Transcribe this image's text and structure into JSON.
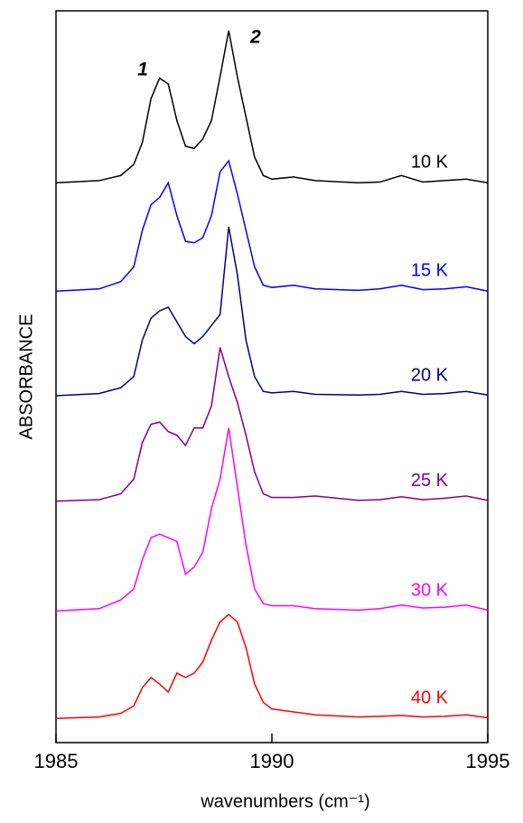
{
  "chart_data": {
    "type": "line",
    "x_label": "wavenumbers (cm⁻¹)",
    "y_label": "ABSORBANCE",
    "annotations": [
      "1",
      "2"
    ],
    "xlim": [
      1985,
      1995
    ],
    "xticks": [
      1985,
      1990,
      1995
    ],
    "ylim": [
      0,
      100
    ],
    "x": [
      1985,
      1986,
      1986.5,
      1986.8,
      1987,
      1987.2,
      1987.4,
      1987.6,
      1987.8,
      1988,
      1988.2,
      1988.4,
      1988.6,
      1988.8,
      1989,
      1989.2,
      1989.4,
      1989.6,
      1989.8,
      1990,
      1990.5,
      1991,
      1992,
      1992.5,
      1993,
      1993.5,
      1994,
      1994.5,
      1995
    ],
    "series": [
      {
        "name": "10 K",
        "color": "#000000",
        "values": [
          76.5,
          76.8,
          77.5,
          79,
          82,
          88,
          90.8,
          90,
          85,
          81.5,
          81.2,
          82.5,
          85,
          91,
          97.3,
          91,
          85.5,
          80,
          77.5,
          77,
          77.3,
          76.8,
          76.5,
          76.6,
          77.5,
          76.6,
          76.8,
          77,
          76.5
        ]
      },
      {
        "name": "15 K",
        "color": "#0000ff",
        "values": [
          61.7,
          62,
          63,
          65,
          70,
          73.5,
          74.5,
          76.5,
          72,
          68.5,
          68.3,
          69,
          72,
          78,
          79.5,
          75,
          70,
          65,
          62.5,
          62.2,
          62.5,
          62,
          61.8,
          62,
          62.5,
          61.9,
          62,
          62.3,
          61.7
        ]
      },
      {
        "name": "20 K",
        "color": "#000080",
        "values": [
          47.4,
          47.7,
          48.5,
          50,
          55,
          58,
          59,
          59.5,
          57.5,
          55.5,
          54.5,
          55.5,
          57,
          58.5,
          70.5,
          64,
          55,
          50,
          48,
          47.8,
          48,
          47.6,
          47.5,
          47.6,
          48,
          47.6,
          47.7,
          48,
          47.5
        ]
      },
      {
        "name": "25 K",
        "color": "#800080",
        "values": [
          33,
          33.2,
          34,
          36,
          41,
          43.5,
          43.8,
          42.5,
          42,
          40.6,
          43,
          43,
          46,
          54,
          50,
          46.5,
          42,
          37,
          34,
          33.5,
          33.5,
          33.7,
          33.1,
          33.2,
          33.6,
          33.2,
          33.4,
          33.7,
          33.1
        ]
      },
      {
        "name": "30 K",
        "color": "#ff00ff",
        "values": [
          18,
          18.3,
          19.5,
          21,
          25,
          28,
          28.5,
          28,
          27.5,
          23,
          24,
          26,
          32,
          36,
          43,
          35,
          27,
          21,
          19,
          18.7,
          18.7,
          18.3,
          18.1,
          18.3,
          18.8,
          18.4,
          18.5,
          18.8,
          18.1
        ]
      },
      {
        "name": "40 K",
        "color": "#ff0000",
        "values": [
          3.3,
          3.5,
          4,
          5,
          7.5,
          8.9,
          8,
          6.9,
          9.5,
          8.9,
          9.5,
          11,
          14,
          16.5,
          17.5,
          16.5,
          13,
          8,
          5.5,
          4.6,
          4.2,
          3.8,
          3.5,
          3.6,
          3.7,
          3.5,
          3.6,
          3.8,
          3.4
        ]
      }
    ]
  }
}
